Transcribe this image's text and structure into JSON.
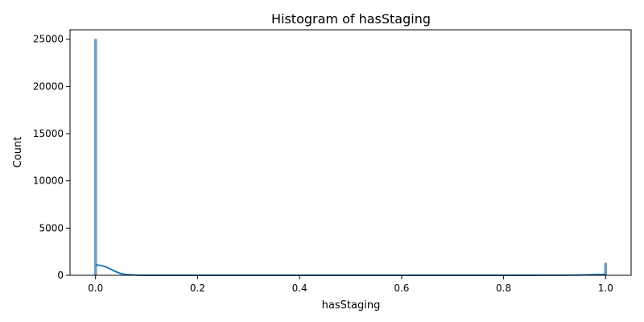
{
  "chart_data": {
    "type": "bar",
    "title": "Histogram of hasStaging",
    "xlabel": "hasStaging",
    "ylabel": "Count",
    "xlim": [
      -0.05,
      1.05
    ],
    "ylim": [
      0,
      26000
    ],
    "xticks": [
      0.0,
      0.2,
      0.4,
      0.6,
      0.8,
      1.0
    ],
    "xtick_labels": [
      "0.0",
      "0.2",
      "0.4",
      "0.6",
      "0.8",
      "1.0"
    ],
    "yticks": [
      0,
      5000,
      10000,
      15000,
      20000,
      25000
    ],
    "ytick_labels": [
      "0",
      "5000",
      "10000",
      "15000",
      "20000",
      "25000"
    ],
    "bins": [
      {
        "x": 0.0,
        "count": 25000
      },
      {
        "x": 1.0,
        "count": 1300
      }
    ],
    "kde": {
      "x": [
        0.0,
        0.01,
        0.02,
        0.03,
        0.04,
        0.05,
        0.06,
        0.08,
        0.1,
        0.2,
        0.4,
        0.6,
        0.8,
        0.9,
        0.95,
        0.98,
        1.0
      ],
      "y": [
        1100,
        1050,
        900,
        650,
        380,
        180,
        80,
        20,
        5,
        0,
        0,
        0,
        0,
        10,
        30,
        70,
        100
      ]
    },
    "grid": false,
    "colors": {
      "bar": "#6f9fc6",
      "bar_edge": "#5b8db8",
      "kde": "#1f77b4"
    }
  }
}
